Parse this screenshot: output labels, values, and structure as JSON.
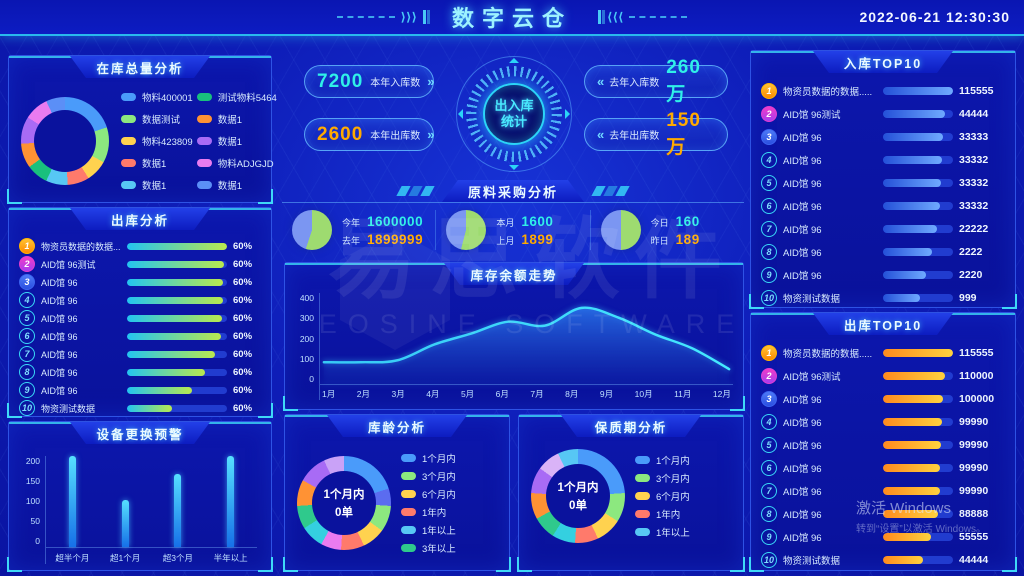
{
  "header": {
    "title": "数字云仓",
    "datetime": "2022-06-21  12:30:30"
  },
  "icons": {
    "chevrons_right": "⟩⟩⟩",
    "chevrons_left": "⟨⟨⟨",
    "pill_arrow_right": "»",
    "pill_arrow_left": "«"
  },
  "center": {
    "in_year": {
      "value": "7200",
      "label": "本年入库数"
    },
    "out_year": {
      "value": "2600",
      "label": "本年出库数"
    },
    "in_last": {
      "value": "260万",
      "label": "去年入库数"
    },
    "out_last": {
      "value": "150万",
      "label": "去年出库数"
    },
    "emblem_line1": "出入库",
    "emblem_line2": "统计"
  },
  "watermark": {
    "cn": "易思软件",
    "en": "EOSINE SOFTWARE"
  },
  "windows_watermark": {
    "line1": "激活 Windows",
    "line2": "转到“设置”以激活 Windows。"
  },
  "chart_data": [
    {
      "id": "stock-total",
      "type": "pie",
      "title": "在库总量分析",
      "legend": [
        {
          "label": "物料400001",
          "color": "#4a9bfa"
        },
        {
          "label": "数据测试",
          "color": "#8ce87f"
        },
        {
          "label": "物料423809",
          "color": "#ffd24f"
        },
        {
          "label": "数据1",
          "color": "#ff7a6b"
        },
        {
          "label": "数据1",
          "color": "#57c7f4"
        },
        {
          "label": "测试物料5464",
          "color": "#19c07d"
        },
        {
          "label": "数据1",
          "color": "#ff9234"
        },
        {
          "label": "数据1",
          "color": "#a86bf5"
        },
        {
          "label": "物料ADJGJD",
          "color": "#ea7bf0"
        },
        {
          "label": "数据1",
          "color": "#5b8ff7"
        }
      ],
      "segments": [
        {
          "color": "#4a9bfa",
          "value": 20
        },
        {
          "color": "#8ce87f",
          "value": 13
        },
        {
          "color": "#ffd24f",
          "value": 8
        },
        {
          "color": "#ff7a6b",
          "value": 8
        },
        {
          "color": "#57c7f4",
          "value": 8
        },
        {
          "color": "#19c07d",
          "value": 8
        },
        {
          "color": "#ff9234",
          "value": 9
        },
        {
          "color": "#a86bf5",
          "value": 10
        },
        {
          "color": "#ea7bf0",
          "value": 9
        },
        {
          "color": "#5b8ff7",
          "value": 7
        }
      ]
    },
    {
      "id": "outbound-analysis",
      "type": "bar",
      "title": "出库分析",
      "items": [
        {
          "rank": "1",
          "label": "物资员数据的数据.....",
          "pct": "60%",
          "width": "100%"
        },
        {
          "rank": "2",
          "label": "AID馆 96测试",
          "pct": "60%",
          "width": "97%"
        },
        {
          "rank": "3",
          "label": "AID馆 96",
          "pct": "60%",
          "width": "96%"
        },
        {
          "rank": "4",
          "label": "AID馆 96",
          "pct": "60%",
          "width": "96%"
        },
        {
          "rank": "5",
          "label": "AID馆 96",
          "pct": "60%",
          "width": "95%"
        },
        {
          "rank": "6",
          "label": "AID馆 96",
          "pct": "60%",
          "width": "94%"
        },
        {
          "rank": "7",
          "label": "AID馆 96",
          "pct": "60%",
          "width": "88%"
        },
        {
          "rank": "8",
          "label": "AID馆 96",
          "pct": "60%",
          "width": "78%"
        },
        {
          "rank": "9",
          "label": "AID馆 96",
          "pct": "60%",
          "width": "65%"
        },
        {
          "rank": "10",
          "label": "物资测试数据",
          "pct": "60%",
          "width": "45%"
        }
      ]
    },
    {
      "id": "equipment-warning",
      "type": "bar",
      "title": "设备更换预警",
      "yticks": [
        "200",
        "150",
        "100",
        "50",
        "0"
      ],
      "ylim": [
        0,
        200
      ],
      "items": [
        {
          "label": "超半个月",
          "value": 200,
          "h": "100%"
        },
        {
          "label": "超1个月",
          "value": 105,
          "h": "52%"
        },
        {
          "label": "超3个月",
          "value": 160,
          "h": "80%"
        },
        {
          "label": "半年以上",
          "value": 200,
          "h": "100%"
        }
      ]
    },
    {
      "id": "procurement",
      "type": "pie",
      "title": "原料采购分析",
      "groups": [
        {
          "pie": [
            {
              "color": "#9edb70",
              "value": 55
            },
            {
              "color": "#7b96f2",
              "value": 45
            }
          ],
          "rows": [
            {
              "label": "今年",
              "value": "1600000"
            },
            {
              "label": "去年",
              "value": "1899999"
            }
          ]
        },
        {
          "pie": [
            {
              "color": "#9edb70",
              "value": 54
            },
            {
              "color": "#7b96f2",
              "value": 46
            }
          ],
          "rows": [
            {
              "label": "本月",
              "value": "1600"
            },
            {
              "label": "上月",
              "value": "1899"
            }
          ]
        },
        {
          "pie": [
            {
              "color": "#9edb70",
              "value": 50
            },
            {
              "color": "#7b96f2",
              "value": 50
            }
          ],
          "rows": [
            {
              "label": "今日",
              "value": "160"
            },
            {
              "label": "昨日",
              "value": "189"
            }
          ]
        }
      ]
    },
    {
      "id": "balance-trend",
      "type": "line",
      "title": "库存余额走势",
      "x": [
        "1月",
        "2月",
        "3月",
        "4月",
        "5月",
        "6月",
        "7月",
        "8月",
        "9月",
        "10月",
        "11月",
        "12月"
      ],
      "values": [
        95,
        95,
        105,
        185,
        240,
        300,
        280,
        370,
        320,
        235,
        165,
        60
      ],
      "ymax": 400,
      "yticks": [
        "400",
        "300",
        "200",
        "100",
        "0"
      ]
    },
    {
      "id": "stock-age",
      "type": "pie",
      "title": "库龄分析",
      "center": [
        "1个月内",
        "0单"
      ],
      "legend": [
        {
          "label": "1个月内",
          "color": "#4a9bfa"
        },
        {
          "label": "3个月内",
          "color": "#8ce87f"
        },
        {
          "label": "6个月内",
          "color": "#ffd24f"
        },
        {
          "label": "1年内",
          "color": "#ff7a6b"
        },
        {
          "label": "1年以上",
          "color": "#57c7f4"
        },
        {
          "label": "3年以上",
          "color": "#2fc98c"
        }
      ],
      "segments": [
        {
          "color": "#4a9bfa",
          "value": 20
        },
        {
          "color": "#5b6cf0",
          "value": 6
        },
        {
          "color": "#8ce87f",
          "value": 9
        },
        {
          "color": "#ffd24f",
          "value": 8
        },
        {
          "color": "#ff7a6b",
          "value": 8
        },
        {
          "color": "#ea7bf0",
          "value": 7
        },
        {
          "color": "#34d0e0",
          "value": 8
        },
        {
          "color": "#2fc98c",
          "value": 8
        },
        {
          "color": "#ff9234",
          "value": 9
        },
        {
          "color": "#a86bf5",
          "value": 10
        },
        {
          "color": "#c9a2f7",
          "value": 7
        }
      ]
    },
    {
      "id": "shelf-life",
      "type": "pie",
      "title": "保质期分析",
      "center": [
        "1个月内",
        "0单"
      ],
      "legend": [
        {
          "label": "1个月内",
          "color": "#4a9bfa"
        },
        {
          "label": "3个月内",
          "color": "#8ce87f"
        },
        {
          "label": "6个月内",
          "color": "#ffd24f"
        },
        {
          "label": "1年内",
          "color": "#ff7a6b"
        },
        {
          "label": "1年以上",
          "color": "#57c7f4"
        }
      ],
      "segments": [
        {
          "color": "#4a9bfa",
          "value": 24
        },
        {
          "color": "#8ce87f",
          "value": 10
        },
        {
          "color": "#ffd24f",
          "value": 9
        },
        {
          "color": "#ff7a6b",
          "value": 8
        },
        {
          "color": "#34d0e0",
          "value": 8
        },
        {
          "color": "#2fc98c",
          "value": 8
        },
        {
          "color": "#ff9234",
          "value": 9
        },
        {
          "color": "#a86bf5",
          "value": 9
        },
        {
          "color": "#d9b3f7",
          "value": 8
        },
        {
          "color": "#57c7f4",
          "value": 7
        }
      ]
    },
    {
      "id": "inbound-top10",
      "type": "bar",
      "title": "入库TOP10",
      "items": [
        {
          "rank": "1",
          "label": "物资员数据的数据.....",
          "value": "115555",
          "width": "100%"
        },
        {
          "rank": "2",
          "label": "AID馆 96测试",
          "value": "44444",
          "width": "88%"
        },
        {
          "rank": "3",
          "label": "AID馆 96",
          "value": "33333",
          "width": "85%"
        },
        {
          "rank": "4",
          "label": "AID馆 96",
          "value": "33332",
          "width": "84%"
        },
        {
          "rank": "5",
          "label": "AID馆 96",
          "value": "33332",
          "width": "83%"
        },
        {
          "rank": "6",
          "label": "AID馆 96",
          "value": "33332",
          "width": "82%"
        },
        {
          "rank": "7",
          "label": "AID馆 96",
          "value": "22222",
          "width": "77%"
        },
        {
          "rank": "8",
          "label": "AID馆 96",
          "value": "2222",
          "width": "70%"
        },
        {
          "rank": "9",
          "label": "AID馆 96",
          "value": "2220",
          "width": "62%"
        },
        {
          "rank": "10",
          "label": "物资测试数据",
          "value": "999",
          "width": "53%"
        }
      ]
    },
    {
      "id": "outbound-top10",
      "type": "bar",
      "title": "出库TOP10",
      "items": [
        {
          "rank": "1",
          "label": "物资员数据的数据.....",
          "value": "115555",
          "width": "100%"
        },
        {
          "rank": "2",
          "label": "AID馆 96测试",
          "value": "110000",
          "width": "89%"
        },
        {
          "rank": "3",
          "label": "AID馆 96",
          "value": "100000",
          "width": "86%"
        },
        {
          "rank": "4",
          "label": "AID馆 96",
          "value": "99990",
          "width": "84%"
        },
        {
          "rank": "5",
          "label": "AID馆 96",
          "value": "99990",
          "width": "83%"
        },
        {
          "rank": "6",
          "label": "AID馆 96",
          "value": "99990",
          "width": "82%"
        },
        {
          "rank": "7",
          "label": "AID馆 96",
          "value": "99990",
          "width": "81%"
        },
        {
          "rank": "8",
          "label": "AID馆 96",
          "value": "88888",
          "width": "78%"
        },
        {
          "rank": "9",
          "label": "AID馆 96",
          "value": "55555",
          "width": "69%"
        },
        {
          "rank": "10",
          "label": "物资测试数据",
          "value": "44444",
          "width": "57%"
        }
      ]
    }
  ]
}
